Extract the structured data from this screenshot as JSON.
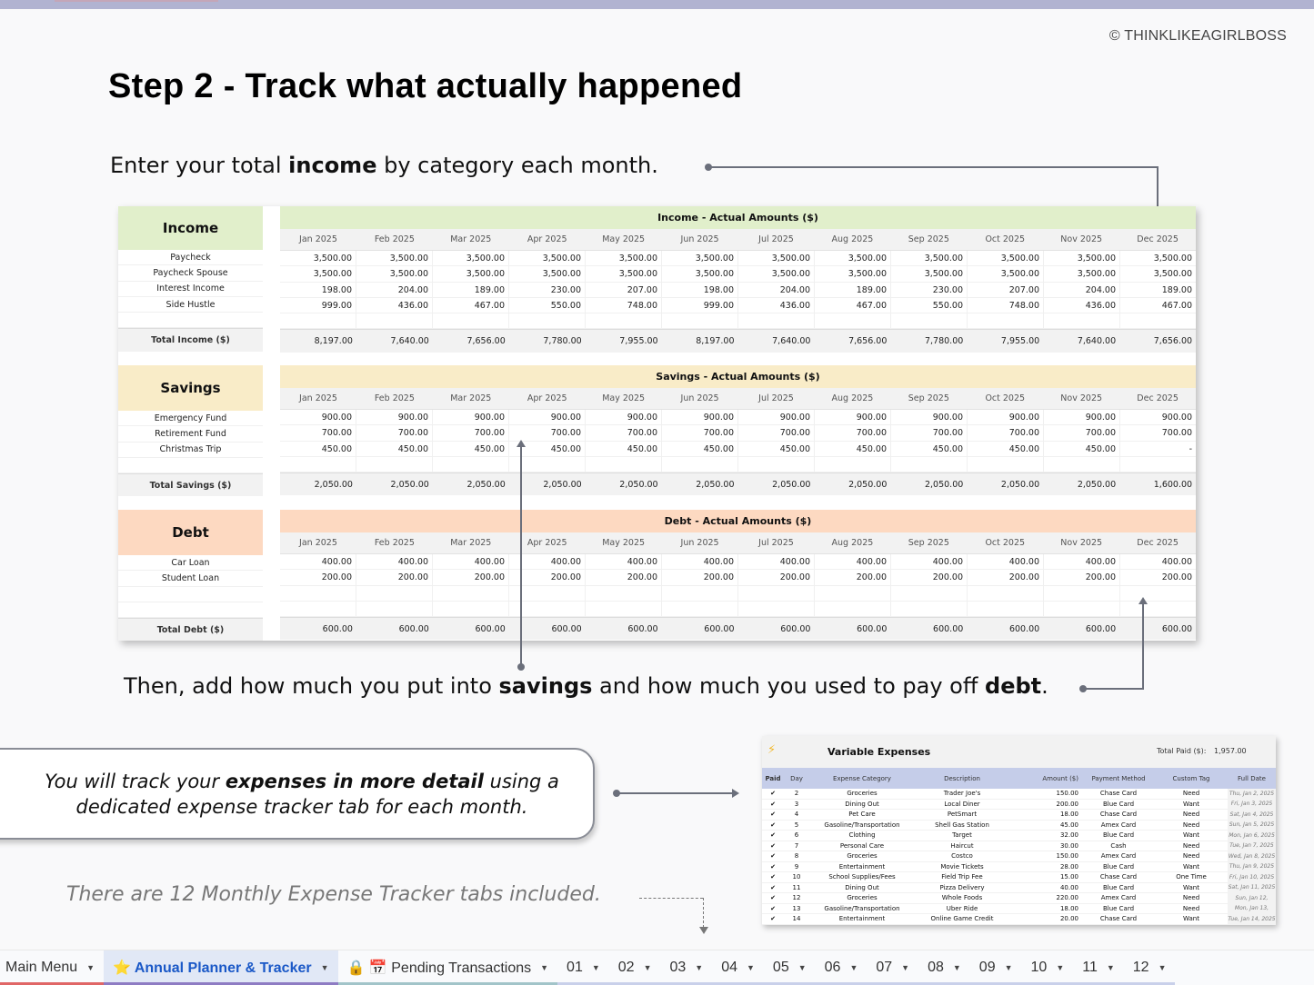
{
  "header": {
    "copyright": "© THINKLIKEAGIRLBOSS",
    "title": "Step 2 - Track what actually happened"
  },
  "captions": {
    "income": {
      "pre": "Enter your total ",
      "bold": "income",
      "post": " by category each month."
    },
    "savings_debt": {
      "pre": "Then, add how much you put into ",
      "bold1": "savings",
      "mid": " and how much you used to pay off ",
      "bold2": "debt",
      "post": "."
    }
  },
  "months": [
    "Jan 2025",
    "Feb 2025",
    "Mar 2025",
    "Apr 2025",
    "May 2025",
    "Jun 2025",
    "Jul 2025",
    "Aug 2025",
    "Sep 2025",
    "Oct 2025",
    "Nov 2025",
    "Dec 2025"
  ],
  "income": {
    "heading": "Income",
    "title": "Income - Actual Amounts ($)",
    "color": "#e1efcb",
    "rows": [
      {
        "label": "Paycheck",
        "values": [
          "3,500.00",
          "3,500.00",
          "3,500.00",
          "3,500.00",
          "3,500.00",
          "3,500.00",
          "3,500.00",
          "3,500.00",
          "3,500.00",
          "3,500.00",
          "3,500.00",
          "3,500.00"
        ]
      },
      {
        "label": "Paycheck Spouse",
        "values": [
          "3,500.00",
          "3,500.00",
          "3,500.00",
          "3,500.00",
          "3,500.00",
          "3,500.00",
          "3,500.00",
          "3,500.00",
          "3,500.00",
          "3,500.00",
          "3,500.00",
          "3,500.00"
        ]
      },
      {
        "label": "Interest Income",
        "values": [
          "198.00",
          "204.00",
          "189.00",
          "230.00",
          "207.00",
          "198.00",
          "204.00",
          "189.00",
          "230.00",
          "207.00",
          "204.00",
          "189.00"
        ]
      },
      {
        "label": "Side Hustle",
        "values": [
          "999.00",
          "436.00",
          "467.00",
          "550.00",
          "748.00",
          "999.00",
          "436.00",
          "467.00",
          "550.00",
          "748.00",
          "436.00",
          "467.00"
        ]
      },
      {
        "label": "",
        "values": [
          "",
          "",
          "",
          "",
          "",
          "",
          "",
          "",
          "",
          "",
          "",
          ""
        ]
      }
    ],
    "total_label": "Total Income ($)",
    "totals": [
      "8,197.00",
      "7,640.00",
      "7,656.00",
      "7,780.00",
      "7,955.00",
      "8,197.00",
      "7,640.00",
      "7,656.00",
      "7,780.00",
      "7,955.00",
      "7,640.00",
      "7,656.00"
    ]
  },
  "savings": {
    "heading": "Savings",
    "title": "Savings - Actual Amounts ($)",
    "color": "#f9ecc8",
    "rows": [
      {
        "label": "Emergency Fund",
        "values": [
          "900.00",
          "900.00",
          "900.00",
          "900.00",
          "900.00",
          "900.00",
          "900.00",
          "900.00",
          "900.00",
          "900.00",
          "900.00",
          "900.00"
        ]
      },
      {
        "label": "Retirement Fund",
        "values": [
          "700.00",
          "700.00",
          "700.00",
          "700.00",
          "700.00",
          "700.00",
          "700.00",
          "700.00",
          "700.00",
          "700.00",
          "700.00",
          "700.00"
        ]
      },
      {
        "label": "Christmas Trip",
        "values": [
          "450.00",
          "450.00",
          "450.00",
          "450.00",
          "450.00",
          "450.00",
          "450.00",
          "450.00",
          "450.00",
          "450.00",
          "450.00",
          "-"
        ]
      },
      {
        "label": "",
        "values": [
          "",
          "",
          "",
          "",
          "",
          "",
          "",
          "",
          "",
          "",
          "",
          ""
        ]
      }
    ],
    "total_label": "Total Savings ($)",
    "totals": [
      "2,050.00",
      "2,050.00",
      "2,050.00",
      "2,050.00",
      "2,050.00",
      "2,050.00",
      "2,050.00",
      "2,050.00",
      "2,050.00",
      "2,050.00",
      "2,050.00",
      "1,600.00"
    ]
  },
  "debt": {
    "heading": "Debt",
    "title": "Debt - Actual Amounts ($)",
    "color": "#fdd9c1",
    "rows": [
      {
        "label": "Car Loan",
        "values": [
          "400.00",
          "400.00",
          "400.00",
          "400.00",
          "400.00",
          "400.00",
          "400.00",
          "400.00",
          "400.00",
          "400.00",
          "400.00",
          "400.00"
        ]
      },
      {
        "label": "Student Loan",
        "values": [
          "200.00",
          "200.00",
          "200.00",
          "200.00",
          "200.00",
          "200.00",
          "200.00",
          "200.00",
          "200.00",
          "200.00",
          "200.00",
          "200.00"
        ]
      },
      {
        "label": "",
        "values": [
          "",
          "",
          "",
          "",
          "",
          "",
          "",
          "",
          "",
          "",
          "",
          ""
        ]
      },
      {
        "label": "",
        "values": [
          "",
          "",
          "",
          "",
          "",
          "",
          "",
          "",
          "",
          "",
          "",
          ""
        ]
      }
    ],
    "total_label": "Total Debt ($)",
    "totals": [
      "600.00",
      "600.00",
      "600.00",
      "600.00",
      "600.00",
      "600.00",
      "600.00",
      "600.00",
      "600.00",
      "600.00",
      "600.00",
      "600.00"
    ]
  },
  "callout": {
    "pre": "You will track your ",
    "bold": "expenses in more detail",
    "post": " using a dedicated expense tracker tab for each month."
  },
  "note": "There are 12 Monthly Expense Tracker tabs included.",
  "expense_tracker": {
    "icon": "lightning-icon",
    "title": "Variable Expenses",
    "total_label": "Total Paid ($):",
    "total_value": "1,957.00",
    "columns": [
      "Paid",
      "Day",
      "Expense Category",
      "Description",
      "Amount ($)",
      "Payment Method",
      "Custom Tag",
      "Full Date"
    ],
    "rows": [
      [
        "✔",
        "2",
        "Groceries",
        "Trader Joe's",
        "150.00",
        "Chase Card",
        "Need",
        "Thu, Jan 2, 2025"
      ],
      [
        "✔",
        "3",
        "Dining Out",
        "Local Diner",
        "200.00",
        "Blue Card",
        "Want",
        "Fri, Jan 3, 2025"
      ],
      [
        "✔",
        "4",
        "Pet Care",
        "PetSmart",
        "18.00",
        "Chase Card",
        "Need",
        "Sat, Jan 4, 2025"
      ],
      [
        "✔",
        "5",
        "Gasoline/Transportation",
        "Shell Gas Station",
        "45.00",
        "Amex Card",
        "Need",
        "Sun, Jan 5, 2025"
      ],
      [
        "✔",
        "6",
        "Clothing",
        "Target",
        "32.00",
        "Blue Card",
        "Want",
        "Mon, Jan 6, 2025"
      ],
      [
        "✔",
        "7",
        "Personal Care",
        "Haircut",
        "30.00",
        "Cash",
        "Need",
        "Tue, Jan 7, 2025"
      ],
      [
        "✔",
        "8",
        "Groceries",
        "Costco",
        "150.00",
        "Amex Card",
        "Need",
        "Wed, Jan 8, 2025"
      ],
      [
        "✔",
        "9",
        "Entertainment",
        "Movie Tickets",
        "28.00",
        "Blue Card",
        "Want",
        "Thu, Jan 9, 2025"
      ],
      [
        "✔",
        "10",
        "School Supplies/Fees",
        "Field Trip Fee",
        "15.00",
        "Chase Card",
        "One Time",
        "Fri, Jan 10, 2025"
      ],
      [
        "✔",
        "11",
        "Dining Out",
        "Pizza Delivery",
        "40.00",
        "Blue Card",
        "Want",
        "Sat, Jan 11, 2025"
      ],
      [
        "✔",
        "12",
        "Groceries",
        "Whole Foods",
        "220.00",
        "Amex Card",
        "Need",
        "Sun, Jan 12, 2025"
      ],
      [
        "✔",
        "13",
        "Gasoline/Transportation",
        "Uber Ride",
        "18.00",
        "Blue Card",
        "Need",
        "Mon, Jan 13, 2025"
      ],
      [
        "✔",
        "14",
        "Entertainment",
        "Online Game Credit",
        "20.00",
        "Chase Card",
        "Want",
        "Tue, Jan 14, 2025"
      ]
    ]
  },
  "tabs": [
    {
      "label": "Main Menu",
      "stripe": "#e06666",
      "active": false
    },
    {
      "label": "⭐ Annual Planner & Tracker",
      "stripe": "#8e7cc3",
      "active": true
    },
    {
      "label": "🔒 📅 Pending Transactions",
      "stripe": "#a2c4c9",
      "active": false
    },
    {
      "label": "01",
      "stripe": "#c9d0ea",
      "active": false
    },
    {
      "label": "02",
      "stripe": "#c9d0ea",
      "active": false
    },
    {
      "label": "03",
      "stripe": "#c9d0ea",
      "active": false
    },
    {
      "label": "04",
      "stripe": "#c9d0ea",
      "active": false
    },
    {
      "label": "05",
      "stripe": "#c9d0ea",
      "active": false
    },
    {
      "label": "06",
      "stripe": "#c9d0ea",
      "active": false
    },
    {
      "label": "07",
      "stripe": "#c9d0ea",
      "active": false
    },
    {
      "label": "08",
      "stripe": "#c9d0ea",
      "active": false
    },
    {
      "label": "09",
      "stripe": "#c9d0ea",
      "active": false
    },
    {
      "label": "10",
      "stripe": "#c9d0ea",
      "active": false
    },
    {
      "label": "11",
      "stripe": "#c9d0ea",
      "active": false
    },
    {
      "label": "12",
      "stripe": "#c9d0ea",
      "active": false
    }
  ],
  "caret": "▼"
}
